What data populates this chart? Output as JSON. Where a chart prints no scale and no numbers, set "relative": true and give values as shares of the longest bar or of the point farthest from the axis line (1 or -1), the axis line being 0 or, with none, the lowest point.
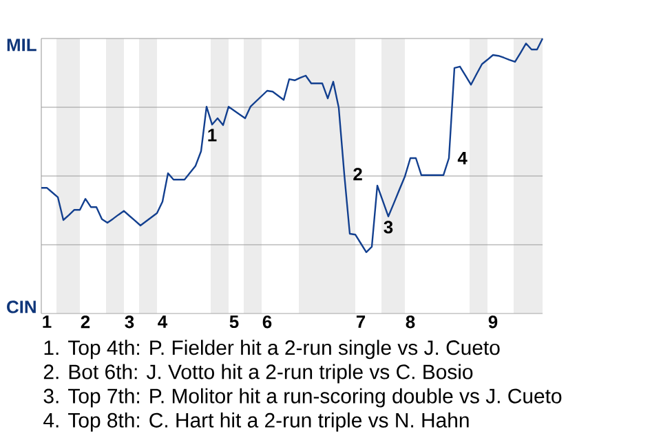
{
  "chart_data": {
    "type": "line",
    "color": "#123f8f",
    "relative": true,
    "categories": [
      null,
      "1",
      null,
      null,
      null,
      null,
      null,
      null,
      "2",
      null,
      null,
      null,
      null,
      null,
      null,
      null,
      "3",
      null,
      null,
      null,
      null,
      null,
      "4",
      null,
      null,
      null,
      null,
      null,
      null,
      null,
      null,
      null,
      null,
      null,
      null,
      "5",
      null,
      null,
      null,
      null,
      null,
      "6",
      null,
      null,
      null,
      null,
      null,
      null,
      null,
      null,
      null,
      null,
      null,
      null,
      null,
      null,
      null,
      null,
      "7",
      null,
      null,
      null,
      null,
      null,
      null,
      null,
      null,
      "8",
      null,
      null,
      null,
      null,
      null,
      null,
      null,
      null,
      null,
      null,
      null,
      null,
      null,
      null,
      "9",
      null,
      null,
      null,
      null,
      null,
      null,
      null,
      null,
      null
    ],
    "values": [
      0.457,
      0.457,
      0.44,
      0.423,
      0.34,
      0.358,
      0.377,
      0.377,
      0.417,
      0.387,
      0.387,
      0.343,
      0.33,
      0.344,
      0.359,
      0.373,
      0.355,
      0.338,
      0.32,
      0.335,
      0.35,
      0.365,
      0.407,
      0.51,
      0.487,
      0.487,
      0.487,
      0.512,
      0.537,
      0.59,
      0.752,
      0.687,
      0.71,
      0.685,
      0.752,
      0.738,
      0.724,
      0.71,
      0.753,
      0.772,
      0.791,
      0.81,
      0.807,
      0.792,
      0.777,
      0.852,
      0.848,
      0.857,
      0.865,
      0.837,
      0.837,
      0.837,
      0.782,
      0.843,
      0.748,
      0.507,
      0.29,
      0.287,
      0.255,
      0.223,
      0.243,
      0.465,
      0.409,
      0.353,
      0.401,
      0.45,
      0.498,
      0.565,
      0.565,
      0.503,
      0.503,
      0.503,
      0.503,
      0.503,
      0.565,
      0.893,
      0.898,
      0.865,
      0.832,
      0.87,
      0.907,
      0.923,
      0.94,
      0.937,
      0.93,
      0.922,
      0.915,
      0.948,
      0.982,
      0.96,
      0.96,
      1
    ],
    "ref_lines": [
      {
        "axis": "y",
        "value": 0.25,
        "color": "#999999"
      },
      {
        "axis": "y",
        "value": 0.5,
        "color": "#999999"
      },
      {
        "axis": "y",
        "value": 0.75,
        "color": "#999999"
      },
      {
        "axis": "y",
        "value": 1,
        "color": "#999999"
      }
    ],
    "annotations": [
      "MIL",
      "CIN",
      "1",
      "2",
      "3",
      "4",
      "1. Top 4th: P. Fielder hit a 2-run single vs J. Cueto",
      "2. Bot 6th: J. Votto hit a 2-run triple vs C. Bosio",
      "3. Top 7th: P. Molitor hit a run-scoring double vs J. Cueto",
      "4. Top 8th: C. Hart hit a 2-run triple vs N. Hahn"
    ]
  }
}
